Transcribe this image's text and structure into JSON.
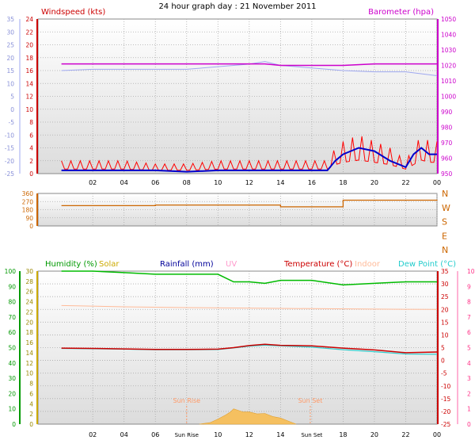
{
  "chart_data": [
    {
      "type": "line",
      "title": "24 hour graph day : 21 November 2011",
      "left_label": "Windspeed (kts)",
      "right_label": "Barometer (hpa)",
      "x_ticks": [
        "02",
        "04",
        "06",
        "08",
        "10",
        "12",
        "14",
        "16",
        "18",
        "20",
        "22",
        "00"
      ],
      "left_ticks_inner": [
        "24",
        "22",
        "20",
        "18",
        "16",
        "14",
        "12",
        "10",
        "8",
        "6",
        "4",
        "2",
        "0"
      ],
      "left_ticks_outer": [
        "35",
        "30",
        "25",
        "20",
        "15",
        "10",
        "5",
        "0",
        "-5",
        "-10",
        "-15",
        "-20",
        "-25"
      ],
      "right_ticks": [
        "1050",
        "1040",
        "1030",
        "1020",
        "1010",
        "1000",
        "990",
        "980",
        "970",
        "960",
        "950"
      ],
      "colors": {
        "barometer": "#cc00cc",
        "temp_outer": "#9fa8f0",
        "gust": "#ff0000",
        "wind": "#0000cc",
        "label_left": "#cc0000",
        "label_right": "#cc00cc"
      },
      "series": [
        {
          "name": "Barometer",
          "x": [
            0,
            2,
            4,
            6,
            8,
            10,
            12,
            13,
            14,
            16,
            18,
            20,
            22,
            24
          ],
          "values": [
            1021,
            1021,
            1021,
            1021,
            1021,
            1021,
            1021,
            1021,
            1020,
            1020,
            1020,
            1021,
            1021,
            1021
          ]
        },
        {
          "name": "Wind speed",
          "x": [
            0,
            2,
            4,
            6,
            8,
            10,
            12,
            14,
            16,
            17,
            17.5,
            18,
            19,
            20,
            21,
            22,
            22.5,
            23,
            23.5,
            24
          ],
          "values": [
            0.5,
            0.5,
            0.5,
            0.5,
            0.3,
            0.5,
            0.5,
            0.5,
            0.5,
            0.5,
            2,
            3,
            4,
            3.5,
            2,
            1,
            3,
            4,
            3,
            3
          ]
        },
        {
          "name": "Gust",
          "x": [
            0,
            2,
            4,
            6,
            8,
            10,
            12,
            14,
            16,
            17,
            17.5,
            18,
            19,
            20,
            21,
            22,
            22.5,
            23,
            23.5,
            24
          ],
          "values": [
            2,
            2,
            2,
            1.5,
            1.5,
            2,
            2,
            2,
            2,
            2,
            4,
            5,
            6,
            5,
            4,
            2,
            4,
            6,
            5,
            5
          ]
        },
        {
          "name": "Temperature trace",
          "x": [
            0,
            2,
            4,
            6,
            8,
            9,
            10,
            11,
            12,
            13,
            14,
            16,
            18,
            20,
            22,
            24
          ],
          "values": [
            15,
            15.5,
            15.5,
            15.5,
            15.5,
            16,
            16.5,
            17,
            17.5,
            18.5,
            17,
            16,
            15,
            14.5,
            14.5,
            13
          ]
        }
      ]
    },
    {
      "type": "line",
      "y_ticks": [
        "360",
        "270",
        "180",
        "90",
        "0"
      ],
      "compass": [
        "N",
        "W",
        "S",
        "E",
        "N"
      ],
      "colors": {
        "direction": "#cc6600"
      },
      "series": [
        {
          "name": "Wind direction",
          "x": [
            0,
            5,
            6,
            14,
            18,
            24
          ],
          "values": [
            225,
            225,
            232,
            212,
            285,
            290
          ]
        }
      ]
    },
    {
      "type": "line",
      "legend": [
        "Humidity (%)",
        "Solar",
        "Rainfall (mm)",
        "UV",
        "Temperature (°C)",
        "Indoor",
        "Dew Point (°C)"
      ],
      "legend_colors": [
        "#009900",
        "#ccaa00",
        "#000099",
        "#ff99cc",
        "#cc0000",
        "#ffbb99",
        "#22cccc"
      ],
      "x_ticks": [
        "02",
        "04",
        "06",
        "Sun Rise",
        "10",
        "12",
        "14",
        "Sun Set",
        "18",
        "20",
        "22",
        "00"
      ],
      "sun_rise_label": "Sun Rise",
      "sun_set_label": "Sun Set",
      "humidity_ticks": [
        "100",
        "90",
        "80",
        "70",
        "60",
        "50",
        "40",
        "30",
        "20",
        "10",
        "0"
      ],
      "solar_ticks": [
        "30",
        "28",
        "26",
        "24",
        "22",
        "20",
        "18",
        "16",
        "14",
        "12",
        "10",
        "8",
        "6",
        "4",
        "2",
        "0"
      ],
      "temp_ticks": [
        "35",
        "30",
        "25",
        "20",
        "15",
        "10",
        "5",
        "0",
        "-5",
        "-10",
        "-15",
        "-20",
        "-25"
      ],
      "uv_ticks": [
        "10",
        "9",
        "8",
        "7",
        "6",
        "5",
        "4",
        "3",
        "2",
        "1",
        "0"
      ],
      "series": [
        {
          "name": "Humidity",
          "x": [
            0,
            2,
            4,
            6,
            8,
            10,
            11,
            12,
            13,
            14,
            16,
            18,
            20,
            22,
            24
          ],
          "values": [
            100,
            100,
            99,
            98,
            98,
            98,
            93,
            93,
            92,
            94,
            94,
            91,
            92,
            93,
            93
          ]
        },
        {
          "name": "Indoor",
          "x": [
            0,
            4,
            8,
            12,
            16,
            20,
            24
          ],
          "values": [
            21.5,
            21,
            20.7,
            20.5,
            20.3,
            20.1,
            20
          ]
        },
        {
          "name": "Temperature",
          "x": [
            0,
            2,
            4,
            6,
            8,
            10,
            11,
            12,
            13,
            14,
            16,
            18,
            20,
            22,
            24
          ],
          "values": [
            4.8,
            4.7,
            4.5,
            4.3,
            4.3,
            4.4,
            5,
            5.8,
            6.3,
            5.9,
            5.7,
            4.8,
            4.1,
            3,
            3.3
          ]
        },
        {
          "name": "Dew Point",
          "x": [
            0,
            2,
            4,
            6,
            8,
            10,
            11,
            12,
            13,
            14,
            16,
            18,
            20,
            22,
            24
          ],
          "values": [
            4.7,
            4.6,
            4.4,
            4.2,
            4.2,
            4.3,
            4.9,
            5.6,
            6,
            5.7,
            5.2,
            4.2,
            3.4,
            2.5,
            2.4
          ]
        },
        {
          "name": "Solar",
          "x": [
            8.8,
            9.5,
            10,
            10.5,
            10.8,
            11,
            11.3,
            11.6,
            12,
            12.5,
            13,
            13.5,
            14,
            14.5,
            15
          ],
          "values": [
            0,
            0.3,
            1,
            1.8,
            2.4,
            3,
            2.7,
            2.4,
            2.4,
            2,
            2.1,
            1.5,
            1.2,
            0.6,
            0
          ]
        }
      ]
    }
  ]
}
